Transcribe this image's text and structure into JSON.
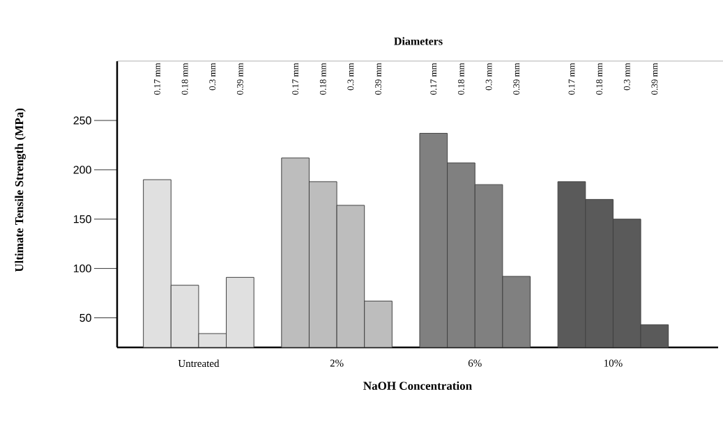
{
  "chart_data": {
    "type": "bar",
    "legend_title": "Diameters",
    "xlabel": "NaOH Concentration",
    "ylabel": "Ultimate Tensile Strength (MPa)",
    "categories": [
      "Untreated",
      "2%",
      "6%",
      "10%"
    ],
    "ylim": [
      20,
      310
    ],
    "yticks": [
      50,
      100,
      150,
      200,
      250
    ],
    "series": [
      {
        "name": "0.17 mm",
        "colors": [
          "#e0e0e0",
          "#bdbdbd",
          "#808080",
          "#5a5a5a"
        ],
        "values": [
          190,
          212,
          237,
          188
        ]
      },
      {
        "name": "0.18 mm",
        "colors": [
          "#e0e0e0",
          "#bdbdbd",
          "#808080",
          "#5a5a5a"
        ],
        "values": [
          83,
          188,
          207,
          170
        ]
      },
      {
        "name": "0.3 mm",
        "colors": [
          "#e0e0e0",
          "#bdbdbd",
          "#808080",
          "#5a5a5a"
        ],
        "values": [
          34,
          164,
          185,
          150
        ]
      },
      {
        "name": "0.39 mm",
        "colors": [
          "#e0e0e0",
          "#bdbdbd",
          "#808080",
          "#5a5a5a"
        ],
        "values": [
          91,
          67,
          92,
          43
        ]
      }
    ]
  }
}
